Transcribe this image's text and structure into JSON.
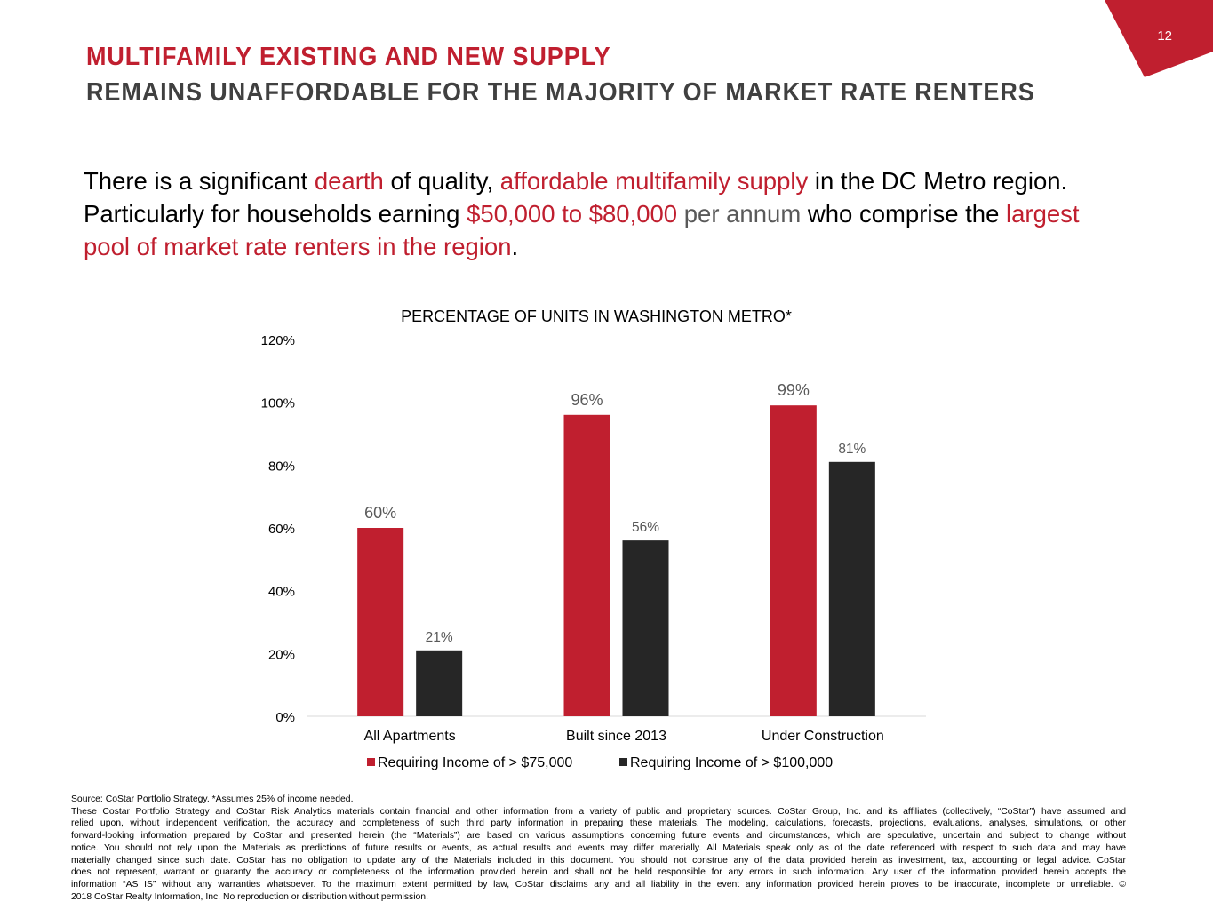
{
  "page_number": "12",
  "title_line1": "MULTIFAMILY EXISTING AND NEW SUPPLY",
  "title_line2": "REMAINS UNAFFORDABLE FOR THE MAJORITY OF MARKET RATE RENTERS",
  "intro": [
    {
      "text": "There is a significant ",
      "style": ""
    },
    {
      "text": "dearth",
      "style": "accent"
    },
    {
      "text": " of quality, ",
      "style": ""
    },
    {
      "text": "affordable multifamily supply",
      "style": "accent"
    },
    {
      "text": " in the DC Metro region. Particularly for households earning ",
      "style": ""
    },
    {
      "text": "$50,000 to $80,000",
      "style": "accent"
    },
    {
      "text": " per annum",
      "style": "muted"
    },
    {
      "text": " who comprise the ",
      "style": ""
    },
    {
      "text": "largest pool of market rate renters in the region",
      "style": "accent"
    },
    {
      "text": ".",
      "style": ""
    }
  ],
  "colors": {
    "red": "#C01F2F",
    "dark": "#262626",
    "label": "#595959"
  },
  "chart_data": {
    "type": "bar",
    "title": "PERCENTAGE OF UNITS IN WASHINGTON METRO*",
    "categories": [
      "All Apartments",
      "Built since 2013",
      "Under Construction"
    ],
    "series": [
      {
        "name": "Requiring Income of > $75,000",
        "values": [
          60,
          96,
          99
        ],
        "labels": [
          "60%",
          "96%",
          "99%"
        ]
      },
      {
        "name": "Requiring Income of > $100,000",
        "values": [
          21,
          56,
          81
        ],
        "labels": [
          "21%",
          "56%",
          "81%"
        ]
      }
    ],
    "ylim": [
      0,
      120
    ],
    "yticks": [
      "0%",
      "20%",
      "40%",
      "60%",
      "80%",
      "100%",
      "120%"
    ],
    "grid": false,
    "legend": "bottom"
  },
  "footer": {
    "source": "Source: CoStar Portfolio Strategy. *Assumes 25% of income needed.",
    "lines": [
      "These Costar Portfolio Strategy and CoStar Risk Analytics materials contain financial and other information from a variety of public and proprietary sources.  CoStar Group, Inc. and its affiliates (collectively, “CoStar”) have assumed and",
      "relied upon, without independent verification, the accuracy and completeness of such third party information in preparing these materials. The modeling, calculations, forecasts, projections, evaluations, analyses, simulations, or other",
      "forward-looking information prepared by CoStar  and presented herein (the “Materials”) are based on various assumptions concerning future events and circumstances, which are speculative, uncertain and subject to change without",
      "notice.  You should not rely upon the Materials as predictions of future results or events, as actual results and events may differ materially.  All Materials speak only as of the date referenced with respect to such data and may have",
      "materially changed since such date.  CoStar has no obligation to update any of the Materials included in this document.  You should not construe any of the data provided herein as investment, tax, accounting or legal advice. CoStar",
      "does not represent, warrant or guaranty the accuracy or completeness of the information provided herein and shall not be held responsible for any errors in such information.  Any user of the information provided herein accepts the",
      "information “AS IS” without any warranties whatsoever.  To the maximum extent permitted by law, CoStar disclaims any and all liability in the event any information provided herein proves to be inaccurate, incomplete or unreliable. ©",
      "2018 CoStar Realty Information, Inc. No reproduction or distribution without permission."
    ]
  }
}
